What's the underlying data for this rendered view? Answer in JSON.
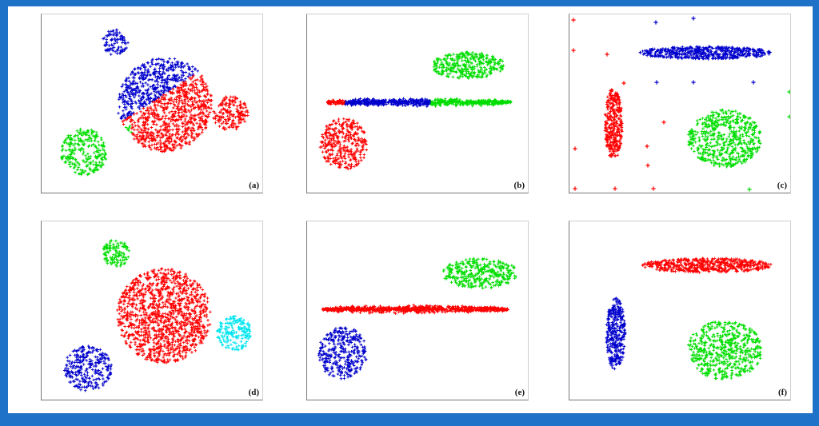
{
  "colors": {
    "red": "#ff0000",
    "blue": "#0000cc",
    "green": "#00dd00",
    "cyan": "#00e5f0",
    "frame": "#1e73c8"
  },
  "chart_data": [
    {
      "type": "scatter",
      "label": "(a)",
      "xlim": [
        0,
        276
      ],
      "ylim": [
        0,
        223
      ],
      "clusters": [
        {
          "shape": "circle",
          "cx": 92,
          "cy": 35,
          "rx": 16,
          "ry": 16,
          "color": "blue",
          "count": 90
        },
        {
          "shape": "circle",
          "cx": 53,
          "cy": 172,
          "rx": 29,
          "ry": 29,
          "color": "green",
          "count": 260
        },
        {
          "shape": "circle",
          "cx": 236,
          "cy": 124,
          "rx": 22,
          "ry": 22,
          "color": "red",
          "count": 170
        },
        {
          "shape": "circle",
          "cx": 154,
          "cy": 113,
          "rx": 59,
          "ry": 59,
          "color": "red",
          "count": 1200,
          "split": {
            "x1": 96,
            "y1": 137,
            "x2": 196,
            "y2": 72,
            "above": "blue",
            "below": "red",
            "tail": "green"
          }
        }
      ]
    },
    {
      "type": "scatter",
      "label": "(b)",
      "xlim": [
        0,
        276
      ],
      "ylim": [
        0,
        223
      ],
      "clusters": [
        {
          "shape": "circle",
          "cx": 201,
          "cy": 64,
          "rx": 46,
          "ry": 17,
          "color": "green",
          "count": 330
        },
        {
          "shape": "circle",
          "cx": 46,
          "cy": 162,
          "rx": 30,
          "ry": 32,
          "color": "red",
          "count": 330
        },
        {
          "shape": "bar",
          "cx": 140,
          "cy": 110,
          "rx": 115,
          "ry": 6,
          "color": "blue",
          "count": 800,
          "bands": [
            {
              "upto": 48,
              "color": "red"
            },
            {
              "upto": 153,
              "color": "blue"
            },
            {
              "upto": 999,
              "color": "green"
            }
          ]
        }
      ]
    },
    {
      "type": "scatter",
      "label": "(c)",
      "xlim": [
        0,
        276
      ],
      "ylim": [
        0,
        223
      ],
      "clusters": [
        {
          "shape": "circle",
          "cx": 170,
          "cy": 48,
          "rx": 82,
          "ry": 8,
          "color": "blue",
          "count": 520
        },
        {
          "shape": "circle",
          "cx": 55,
          "cy": 137,
          "rx": 11,
          "ry": 45,
          "color": "red",
          "count": 330
        },
        {
          "shape": "circle",
          "cx": 194,
          "cy": 155,
          "rx": 46,
          "ry": 36,
          "color": "green",
          "count": 540
        }
      ],
      "outliers": [
        {
          "x": 5,
          "y": 7,
          "color": "red"
        },
        {
          "x": 108,
          "y": 10,
          "color": "blue"
        },
        {
          "x": 155,
          "y": 5,
          "color": "blue"
        },
        {
          "x": 5,
          "y": 45,
          "color": "red"
        },
        {
          "x": 47,
          "y": 50,
          "color": "red"
        },
        {
          "x": 68,
          "y": 86,
          "color": "red"
        },
        {
          "x": 109,
          "y": 85,
          "color": "blue"
        },
        {
          "x": 155,
          "y": 85,
          "color": "blue"
        },
        {
          "x": 230,
          "y": 85,
          "color": "blue"
        },
        {
          "x": 275,
          "y": 97,
          "color": "green"
        },
        {
          "x": 118,
          "y": 135,
          "color": "red"
        },
        {
          "x": 97,
          "y": 165,
          "color": "red"
        },
        {
          "x": 275,
          "y": 128,
          "color": "green"
        },
        {
          "x": 7,
          "y": 168,
          "color": "red"
        },
        {
          "x": 98,
          "y": 189,
          "color": "red"
        },
        {
          "x": 7,
          "y": 218,
          "color": "red"
        },
        {
          "x": 57,
          "y": 218,
          "color": "red"
        },
        {
          "x": 105,
          "y": 218,
          "color": "red"
        },
        {
          "x": 225,
          "y": 219,
          "color": "green"
        }
      ]
    },
    {
      "type": "scatter",
      "label": "(d)",
      "xlim": [
        0,
        276
      ],
      "ylim": [
        0,
        223
      ],
      "clusters": [
        {
          "shape": "circle",
          "cx": 93,
          "cy": 40,
          "rx": 17,
          "ry": 17,
          "color": "green",
          "count": 110
        },
        {
          "shape": "circle",
          "cx": 153,
          "cy": 118,
          "rx": 59,
          "ry": 59,
          "color": "red",
          "count": 1200
        },
        {
          "shape": "circle",
          "cx": 241,
          "cy": 140,
          "rx": 22,
          "ry": 22,
          "color": "cyan",
          "count": 170
        },
        {
          "shape": "circle",
          "cx": 58,
          "cy": 184,
          "rx": 30,
          "ry": 28,
          "color": "blue",
          "count": 270
        }
      ]
    },
    {
      "type": "scatter",
      "label": "(e)",
      "xlim": [
        0,
        276
      ],
      "ylim": [
        0,
        223
      ],
      "clusters": [
        {
          "shape": "circle",
          "cx": 216,
          "cy": 65,
          "rx": 47,
          "ry": 19,
          "color": "green",
          "count": 340
        },
        {
          "shape": "bar",
          "cx": 135,
          "cy": 110,
          "rx": 116,
          "ry": 6,
          "color": "red",
          "count": 800
        },
        {
          "shape": "circle",
          "cx": 44,
          "cy": 164,
          "rx": 31,
          "ry": 33,
          "color": "blue",
          "count": 330
        }
      ]
    },
    {
      "type": "scatter",
      "label": "(f)",
      "xlim": [
        0,
        276
      ],
      "ylim": [
        0,
        223
      ],
      "clusters": [
        {
          "shape": "circle",
          "cx": 173,
          "cy": 55,
          "rx": 82,
          "ry": 9,
          "color": "red",
          "count": 520
        },
        {
          "shape": "circle",
          "cx": 58,
          "cy": 141,
          "rx": 12,
          "ry": 45,
          "color": "blue",
          "count": 330
        },
        {
          "shape": "circle",
          "cx": 194,
          "cy": 161,
          "rx": 47,
          "ry": 37,
          "color": "green",
          "count": 540
        }
      ]
    }
  ]
}
